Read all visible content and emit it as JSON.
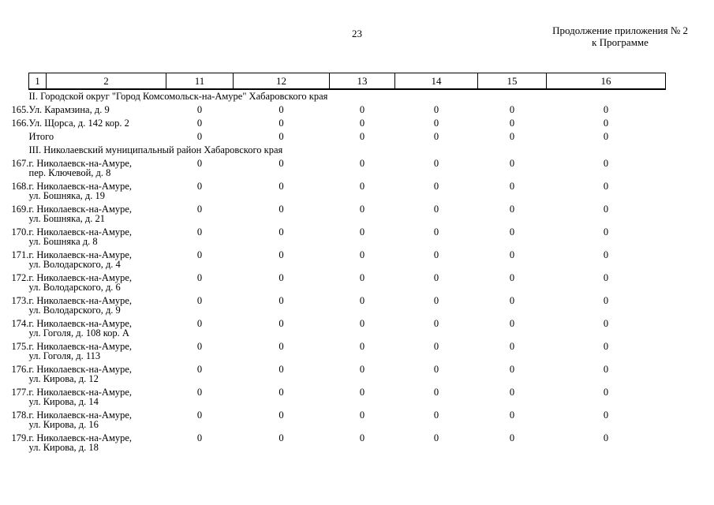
{
  "page": {
    "number": "23",
    "continuation_line1": "Продолжение приложения № 2",
    "continuation_line2": "к Программе"
  },
  "table": {
    "columns": [
      "1",
      "2",
      "11",
      "12",
      "13",
      "14",
      "15",
      "16"
    ],
    "sections": [
      {
        "title": "II. Городской округ \"Город Комсомольск-на-Амуре\" Хабаровского края",
        "rows": [
          {
            "address": [
              "165.Ул. Карамзина, д. 9"
            ],
            "indent": false,
            "values": [
              "0",
              "0",
              "0",
              "0",
              "0",
              "0"
            ]
          },
          {
            "address": [
              "166.Ул. Щорса, д. 142 кор. 2"
            ],
            "indent": false,
            "values": [
              "0",
              "0",
              "0",
              "0",
              "0",
              "0"
            ]
          },
          {
            "address": [
              "Итого"
            ],
            "indent": true,
            "values": [
              "0",
              "0",
              "0",
              "0",
              "0",
              "0"
            ]
          }
        ]
      },
      {
        "title": "III. Николаевский муниципальный район Хабаровского края",
        "rows": [
          {
            "address": [
              "167.г. Николаевск-на-Амуре,",
              "пер. Ключевой, д. 8"
            ],
            "indent": false,
            "values": [
              "0",
              "0",
              "0",
              "0",
              "0",
              "0"
            ]
          },
          {
            "address": [
              "168.г. Николаевск-на-Амуре,",
              "ул. Бошняка, д. 19"
            ],
            "indent": false,
            "values": [
              "0",
              "0",
              "0",
              "0",
              "0",
              "0"
            ]
          },
          {
            "address": [
              "169.г. Николаевск-на-Амуре,",
              "ул. Бошняка, д. 21"
            ],
            "indent": false,
            "values": [
              "0",
              "0",
              "0",
              "0",
              "0",
              "0"
            ]
          },
          {
            "address": [
              "170.г. Николаевск-на-Амуре,",
              "ул. Бошняка д. 8"
            ],
            "indent": false,
            "values": [
              "0",
              "0",
              "0",
              "0",
              "0",
              "0"
            ]
          },
          {
            "address": [
              "171.г. Николаевск-на-Амуре,",
              "ул. Володарского, д. 4"
            ],
            "indent": false,
            "values": [
              "0",
              "0",
              "0",
              "0",
              "0",
              "0"
            ]
          },
          {
            "address": [
              "172.г. Николаевск-на-Амуре,",
              "ул. Володарского, д. 6"
            ],
            "indent": false,
            "values": [
              "0",
              "0",
              "0",
              "0",
              "0",
              "0"
            ]
          },
          {
            "address": [
              "173.г. Николаевск-на-Амуре,",
              "ул. Володарского, д. 9"
            ],
            "indent": false,
            "values": [
              "0",
              "0",
              "0",
              "0",
              "0",
              "0"
            ]
          },
          {
            "address": [
              "174.г. Николаевск-на-Амуре,",
              "ул. Гоголя, д. 108 кор. А"
            ],
            "indent": false,
            "values": [
              "0",
              "0",
              "0",
              "0",
              "0",
              "0"
            ]
          },
          {
            "address": [
              "175.г. Николаевск-на-Амуре,",
              "ул. Гоголя, д. 113"
            ],
            "indent": false,
            "values": [
              "0",
              "0",
              "0",
              "0",
              "0",
              "0"
            ]
          },
          {
            "address": [
              "176.г. Николаевск-на-Амуре,",
              "ул. Кирова, д. 12"
            ],
            "indent": false,
            "values": [
              "0",
              "0",
              "0",
              "0",
              "0",
              "0"
            ]
          },
          {
            "address": [
              "177.г. Николаевск-на-Амуре,",
              "ул. Кирова, д. 14"
            ],
            "indent": false,
            "values": [
              "0",
              "0",
              "0",
              "0",
              "0",
              "0"
            ]
          },
          {
            "address": [
              "178.г. Николаевск-на-Амуре,",
              "ул. Кирова, д. 16"
            ],
            "indent": false,
            "values": [
              "0",
              "0",
              "0",
              "0",
              "0",
              "0"
            ]
          },
          {
            "address": [
              "179.г. Николаевск-на-Амуре,",
              "ул. Кирова, д. 18"
            ],
            "indent": false,
            "values": [
              "0",
              "0",
              "0",
              "0",
              "0",
              "0"
            ]
          }
        ]
      }
    ]
  }
}
